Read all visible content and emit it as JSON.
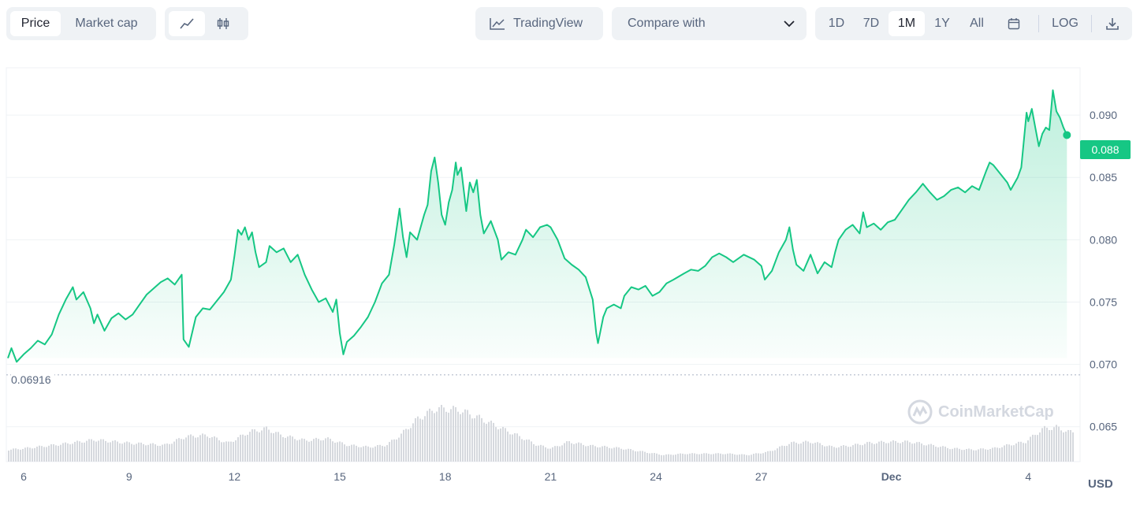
{
  "toolbar": {
    "price_label": "Price",
    "market_cap_label": "Market cap",
    "tradingview_label": "TradingView",
    "compare_label": "Compare with",
    "range_buttons": [
      "1D",
      "7D",
      "1M",
      "1Y",
      "All"
    ],
    "active_range": "1M",
    "log_label": "LOG"
  },
  "watermark": "CoinMarketCap",
  "colors": {
    "line": "#16c784",
    "volume": "#d6d9de",
    "grid": "#eff2f5"
  },
  "chart_data": {
    "type": "area",
    "x_ticks": [
      "6",
      "9",
      "12",
      "15",
      "18",
      "21",
      "24",
      "27",
      "Dec",
      "4"
    ],
    "y_ticks": [
      "0.090",
      "0.085",
      "0.080",
      "0.075",
      "0.070",
      "0.065"
    ],
    "ylim": [
      0.0622,
      0.0938
    ],
    "currency": "USD",
    "start_price_label": "0.06916",
    "start_price": 0.06916,
    "last_price_label": "0.088",
    "last_price": 0.0884,
    "xlim": [
      5.55,
      35.85
    ],
    "price": [
      [
        5.55,
        0.0705
      ],
      [
        5.65,
        0.0713
      ],
      [
        5.8,
        0.0702
      ],
      [
        6.0,
        0.0708
      ],
      [
        6.2,
        0.0713
      ],
      [
        6.4,
        0.0719
      ],
      [
        6.6,
        0.0716
      ],
      [
        6.8,
        0.0724
      ],
      [
        7.0,
        0.074
      ],
      [
        7.2,
        0.0752
      ],
      [
        7.4,
        0.0762
      ],
      [
        7.5,
        0.0752
      ],
      [
        7.7,
        0.0758
      ],
      [
        7.9,
        0.0745
      ],
      [
        8.0,
        0.0733
      ],
      [
        8.1,
        0.074
      ],
      [
        8.3,
        0.0727
      ],
      [
        8.5,
        0.0737
      ],
      [
        8.7,
        0.0741
      ],
      [
        8.9,
        0.0736
      ],
      [
        9.1,
        0.074
      ],
      [
        9.3,
        0.0748
      ],
      [
        9.5,
        0.0756
      ],
      [
        9.7,
        0.0761
      ],
      [
        9.9,
        0.0766
      ],
      [
        10.1,
        0.0769
      ],
      [
        10.3,
        0.0764
      ],
      [
        10.5,
        0.0772
      ],
      [
        10.55,
        0.072
      ],
      [
        10.7,
        0.0714
      ],
      [
        10.9,
        0.0738
      ],
      [
        11.1,
        0.0745
      ],
      [
        11.3,
        0.0744
      ],
      [
        11.5,
        0.0751
      ],
      [
        11.7,
        0.0758
      ],
      [
        11.9,
        0.0768
      ],
      [
        12.0,
        0.0787
      ],
      [
        12.1,
        0.0808
      ],
      [
        12.2,
        0.0804
      ],
      [
        12.3,
        0.081
      ],
      [
        12.4,
        0.08
      ],
      [
        12.5,
        0.0806
      ],
      [
        12.6,
        0.079
      ],
      [
        12.7,
        0.0778
      ],
      [
        12.9,
        0.0782
      ],
      [
        13.0,
        0.0795
      ],
      [
        13.2,
        0.079
      ],
      [
        13.4,
        0.0793
      ],
      [
        13.6,
        0.0782
      ],
      [
        13.8,
        0.0788
      ],
      [
        14.0,
        0.0772
      ],
      [
        14.2,
        0.076
      ],
      [
        14.4,
        0.075
      ],
      [
        14.6,
        0.0753
      ],
      [
        14.8,
        0.0742
      ],
      [
        14.9,
        0.0752
      ],
      [
        15.0,
        0.0725
      ],
      [
        15.1,
        0.0708
      ],
      [
        15.2,
        0.0718
      ],
      [
        15.4,
        0.0723
      ],
      [
        15.6,
        0.073
      ],
      [
        15.8,
        0.0738
      ],
      [
        16.0,
        0.075
      ],
      [
        16.2,
        0.0765
      ],
      [
        16.4,
        0.0772
      ],
      [
        16.55,
        0.0796
      ],
      [
        16.7,
        0.0825
      ],
      [
        16.8,
        0.0802
      ],
      [
        16.9,
        0.0786
      ],
      [
        17.0,
        0.0806
      ],
      [
        17.2,
        0.08
      ],
      [
        17.4,
        0.082
      ],
      [
        17.5,
        0.0828
      ],
      [
        17.6,
        0.0855
      ],
      [
        17.7,
        0.0866
      ],
      [
        17.8,
        0.0846
      ],
      [
        17.9,
        0.082
      ],
      [
        18.0,
        0.0812
      ],
      [
        18.1,
        0.083
      ],
      [
        18.2,
        0.084
      ],
      [
        18.3,
        0.0862
      ],
      [
        18.35,
        0.0852
      ],
      [
        18.45,
        0.0858
      ],
      [
        18.6,
        0.0823
      ],
      [
        18.7,
        0.0846
      ],
      [
        18.8,
        0.0838
      ],
      [
        18.9,
        0.0848
      ],
      [
        19.0,
        0.082
      ],
      [
        19.1,
        0.0805
      ],
      [
        19.3,
        0.0815
      ],
      [
        19.5,
        0.08
      ],
      [
        19.6,
        0.0784
      ],
      [
        19.8,
        0.079
      ],
      [
        20.0,
        0.0788
      ],
      [
        20.2,
        0.08
      ],
      [
        20.3,
        0.0808
      ],
      [
        20.5,
        0.0802
      ],
      [
        20.7,
        0.081
      ],
      [
        20.9,
        0.0812
      ],
      [
        21.0,
        0.081
      ],
      [
        21.2,
        0.08
      ],
      [
        21.4,
        0.0785
      ],
      [
        21.6,
        0.078
      ],
      [
        21.8,
        0.0776
      ],
      [
        22.0,
        0.077
      ],
      [
        22.2,
        0.0752
      ],
      [
        22.3,
        0.0725
      ],
      [
        22.35,
        0.0717
      ],
      [
        22.5,
        0.0738
      ],
      [
        22.6,
        0.0745
      ],
      [
        22.8,
        0.0748
      ],
      [
        23.0,
        0.0745
      ],
      [
        23.1,
        0.0755
      ],
      [
        23.3,
        0.0762
      ],
      [
        23.5,
        0.076
      ],
      [
        23.7,
        0.0763
      ],
      [
        23.9,
        0.0755
      ],
      [
        24.1,
        0.0758
      ],
      [
        24.3,
        0.0765
      ],
      [
        24.5,
        0.0768
      ],
      [
        24.8,
        0.0773
      ],
      [
        25.0,
        0.0776
      ],
      [
        25.2,
        0.0775
      ],
      [
        25.4,
        0.0779
      ],
      [
        25.6,
        0.0786
      ],
      [
        25.8,
        0.0789
      ],
      [
        26.0,
        0.0786
      ],
      [
        26.2,
        0.0782
      ],
      [
        26.5,
        0.0788
      ],
      [
        26.8,
        0.0784
      ],
      [
        27.0,
        0.0779
      ],
      [
        27.1,
        0.0768
      ],
      [
        27.3,
        0.0775
      ],
      [
        27.5,
        0.079
      ],
      [
        27.7,
        0.08
      ],
      [
        27.8,
        0.081
      ],
      [
        27.9,
        0.0792
      ],
      [
        28.0,
        0.078
      ],
      [
        28.2,
        0.0775
      ],
      [
        28.4,
        0.0788
      ],
      [
        28.6,
        0.0773
      ],
      [
        28.8,
        0.0782
      ],
      [
        29.0,
        0.0778
      ],
      [
        29.1,
        0.079
      ],
      [
        29.2,
        0.08
      ],
      [
        29.4,
        0.0808
      ],
      [
        29.6,
        0.0812
      ],
      [
        29.8,
        0.0805
      ],
      [
        29.9,
        0.0822
      ],
      [
        30.0,
        0.081
      ],
      [
        30.2,
        0.0813
      ],
      [
        30.4,
        0.0808
      ],
      [
        30.6,
        0.0814
      ],
      [
        30.8,
        0.0816
      ],
      [
        31.0,
        0.0824
      ],
      [
        31.2,
        0.0832
      ],
      [
        31.4,
        0.0838
      ],
      [
        31.6,
        0.0845
      ],
      [
        31.8,
        0.0838
      ],
      [
        32.0,
        0.0832
      ],
      [
        32.2,
        0.0835
      ],
      [
        32.4,
        0.084
      ],
      [
        32.6,
        0.0842
      ],
      [
        32.8,
        0.0838
      ],
      [
        33.0,
        0.0843
      ],
      [
        33.2,
        0.084
      ],
      [
        33.4,
        0.0855
      ],
      [
        33.5,
        0.0862
      ],
      [
        33.6,
        0.086
      ],
      [
        33.8,
        0.0853
      ],
      [
        34.0,
        0.0846
      ],
      [
        34.1,
        0.084
      ],
      [
        34.3,
        0.085
      ],
      [
        34.4,
        0.0858
      ],
      [
        34.55,
        0.0902
      ],
      [
        34.6,
        0.0895
      ],
      [
        34.7,
        0.0905
      ],
      [
        34.8,
        0.089
      ],
      [
        34.9,
        0.0875
      ],
      [
        35.0,
        0.0885
      ],
      [
        35.1,
        0.089
      ],
      [
        35.2,
        0.0888
      ],
      [
        35.3,
        0.092
      ],
      [
        35.4,
        0.0903
      ],
      [
        35.5,
        0.0898
      ],
      [
        35.6,
        0.089
      ],
      [
        35.7,
        0.0884
      ]
    ],
    "volume_relative": [
      [
        5.55,
        0.18
      ],
      [
        6.0,
        0.2
      ],
      [
        7.0,
        0.26
      ],
      [
        8.0,
        0.33
      ],
      [
        9.0,
        0.28
      ],
      [
        10.0,
        0.25
      ],
      [
        10.6,
        0.38
      ],
      [
        11.2,
        0.4
      ],
      [
        11.8,
        0.28
      ],
      [
        12.4,
        0.45
      ],
      [
        12.9,
        0.5
      ],
      [
        13.3,
        0.4
      ],
      [
        14.0,
        0.32
      ],
      [
        14.6,
        0.35
      ],
      [
        15.2,
        0.25
      ],
      [
        15.8,
        0.22
      ],
      [
        16.3,
        0.25
      ],
      [
        16.7,
        0.4
      ],
      [
        17.2,
        0.65
      ],
      [
        17.7,
        0.8
      ],
      [
        18.0,
        0.8
      ],
      [
        18.4,
        0.78
      ],
      [
        19.0,
        0.65
      ],
      [
        19.6,
        0.5
      ],
      [
        20.1,
        0.38
      ],
      [
        20.6,
        0.25
      ],
      [
        21.0,
        0.2
      ],
      [
        21.5,
        0.3
      ],
      [
        22.1,
        0.24
      ],
      [
        22.6,
        0.22
      ],
      [
        23.0,
        0.2
      ],
      [
        23.6,
        0.15
      ],
      [
        24.2,
        0.1
      ],
      [
        24.8,
        0.12
      ],
      [
        25.4,
        0.12
      ],
      [
        26.0,
        0.12
      ],
      [
        26.6,
        0.1
      ],
      [
        27.2,
        0.15
      ],
      [
        27.8,
        0.28
      ],
      [
        28.4,
        0.3
      ],
      [
        29.0,
        0.22
      ],
      [
        29.5,
        0.24
      ],
      [
        30.0,
        0.28
      ],
      [
        30.6,
        0.3
      ],
      [
        31.2,
        0.3
      ],
      [
        31.8,
        0.25
      ],
      [
        32.4,
        0.2
      ],
      [
        33.0,
        0.18
      ],
      [
        33.6,
        0.2
      ],
      [
        34.0,
        0.25
      ],
      [
        34.5,
        0.3
      ],
      [
        35.0,
        0.5
      ],
      [
        35.4,
        0.52
      ],
      [
        35.7,
        0.45
      ]
    ]
  }
}
